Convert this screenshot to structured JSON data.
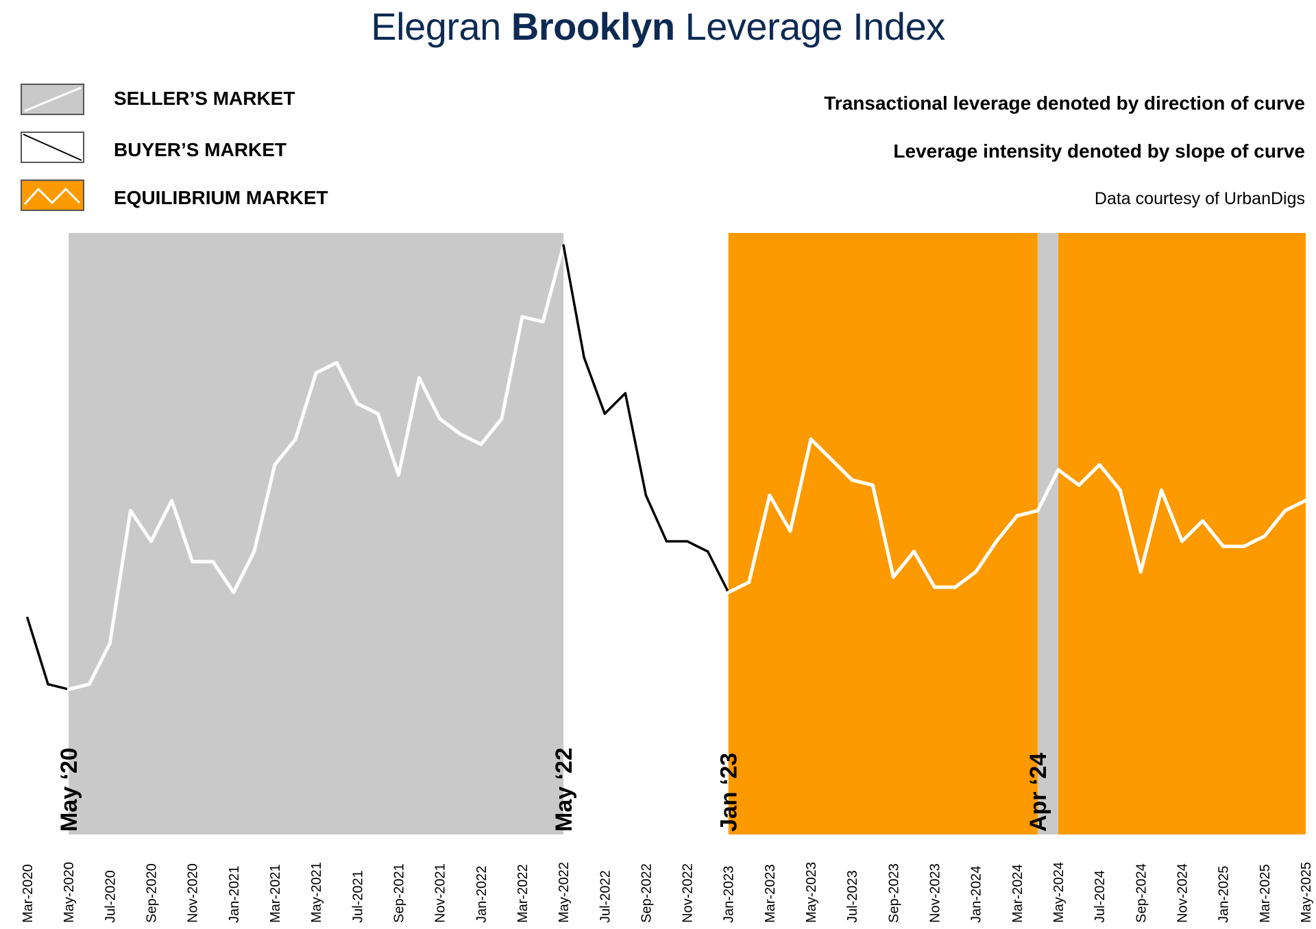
{
  "title": {
    "prefix": "Elegran",
    "bold": "Brooklyn",
    "suffix": "Leverage Index"
  },
  "legend": [
    {
      "label": "SELLER’S MARKET",
      "swatch": "seller"
    },
    {
      "label": "BUYER’S MARKET",
      "swatch": "buyer"
    },
    {
      "label": "EQUILIBRIUM MARKET",
      "swatch": "equilibrium"
    }
  ],
  "notes": {
    "line1": "Transactional leverage denoted by direction of curve",
    "line2": "Leverage intensity denoted by slope of curve",
    "source": "Data courtesy of UrbanDigs"
  },
  "colors": {
    "seller": "#c9c9c9",
    "equilibrium": "#fd9a01",
    "title": "#0d2a52",
    "seller_line": "#ffffff",
    "buyer_line": "#000000"
  },
  "chart_data": {
    "type": "line",
    "title": "Elegran Brooklyn Leverage Index",
    "xlabel": "",
    "ylabel": "",
    "ylim": [
      0,
      100
    ],
    "x": [
      "Mar-2020",
      "Apr-2020",
      "May-2020",
      "Jun-2020",
      "Jul-2020",
      "Aug-2020",
      "Sep-2020",
      "Oct-2020",
      "Nov-2020",
      "Dec-2020",
      "Jan-2021",
      "Feb-2021",
      "Mar-2021",
      "Apr-2021",
      "May-2021",
      "Jun-2021",
      "Jul-2021",
      "Aug-2021",
      "Sep-2021",
      "Oct-2021",
      "Nov-2021",
      "Dec-2021",
      "Jan-2022",
      "Feb-2022",
      "Mar-2022",
      "Apr-2022",
      "May-2022",
      "Jun-2022",
      "Jul-2022",
      "Aug-2022",
      "Sep-2022",
      "Oct-2022",
      "Nov-2022",
      "Dec-2022",
      "Jan-2023",
      "Feb-2023",
      "Mar-2023",
      "Apr-2023",
      "May-2023",
      "Jun-2023",
      "Jul-2023",
      "Aug-2023",
      "Sep-2023",
      "Oct-2023",
      "Nov-2023",
      "Dec-2023",
      "Jan-2024",
      "Feb-2024",
      "Mar-2024",
      "Apr-2024",
      "May-2024",
      "Jun-2024",
      "Jul-2024",
      "Aug-2024",
      "Sep-2024",
      "Oct-2024",
      "Nov-2024",
      "Dec-2024",
      "Jan-2025",
      "Feb-2025",
      "Mar-2025",
      "Apr-2025",
      "May-2025"
    ],
    "tick_labels": [
      "Mar-2020",
      "May-2020",
      "Jul-2020",
      "Sep-2020",
      "Nov-2020",
      "Jan-2021",
      "Mar-2021",
      "May-2021",
      "Jul-2021",
      "Sep-2021",
      "Nov-2021",
      "Jan-2022",
      "Mar-2022",
      "May-2022",
      "Jul-2022",
      "Sep-2022",
      "Nov-2022",
      "Jan-2023",
      "Mar-2023",
      "May-2023",
      "Jul-2023",
      "Sep-2023",
      "Nov-2023",
      "Jan-2024",
      "Mar-2024",
      "May-2024",
      "Jul-2024",
      "Sep-2024",
      "Nov-2024",
      "Jan-2025",
      "Mar-2025",
      "May-2025"
    ],
    "values": [
      27,
      14,
      13,
      14,
      22,
      48,
      42,
      50,
      38,
      38,
      32,
      40,
      57,
      62,
      75,
      77,
      69,
      67,
      55,
      74,
      66,
      63,
      61,
      66,
      86,
      85,
      100,
      78,
      67,
      71,
      51,
      42,
      42,
      40,
      32,
      34,
      51,
      44,
      62,
      58,
      54,
      53,
      35,
      40,
      33,
      33,
      36,
      42,
      47,
      48,
      56,
      53,
      57,
      52,
      36,
      52,
      42,
      46,
      41,
      41,
      43,
      48,
      50
    ],
    "regions": [
      {
        "type": "seller",
        "from": "May-2020",
        "to": "May-2022"
      },
      {
        "type": "equilibrium",
        "from": "Jan-2023",
        "to": "Apr-2024"
      },
      {
        "type": "seller",
        "from": "Apr-2024",
        "to": "May-2024"
      },
      {
        "type": "equilibrium",
        "from": "May-2024",
        "to": "May-2025"
      }
    ],
    "markers": [
      {
        "label": "May ‘20",
        "at": "May-2020"
      },
      {
        "label": "May ‘22",
        "at": "May-2022"
      },
      {
        "label": "Jan ‘23",
        "at": "Jan-2023"
      },
      {
        "label": "Apr ‘24",
        "at": "Apr-2024"
      }
    ]
  }
}
